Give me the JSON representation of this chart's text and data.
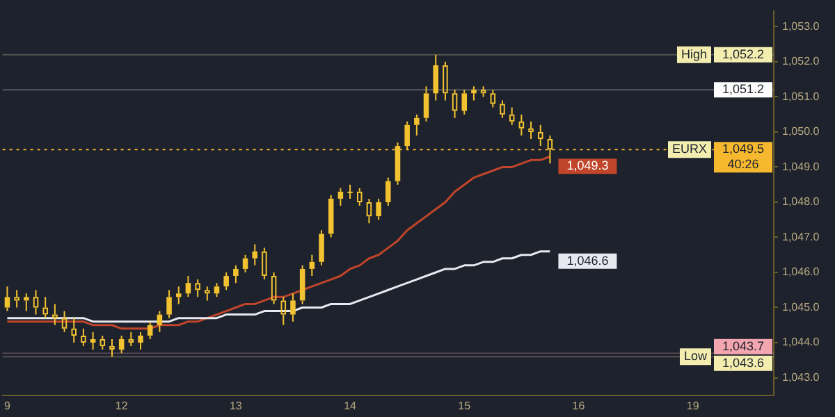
{
  "chart_data": {
    "type": "candlestick",
    "color": "#f2c230",
    "categories": [
      "9",
      null,
      null,
      null,
      null,
      null,
      null,
      null,
      null,
      null,
      null,
      null,
      "12",
      null,
      null,
      null,
      null,
      null,
      null,
      null,
      null,
      null,
      null,
      null,
      "13",
      null,
      null,
      null,
      null,
      null,
      null,
      null,
      null,
      null,
      null,
      null,
      "14",
      null,
      null,
      null,
      null,
      null,
      null,
      null,
      null,
      null,
      null,
      null,
      "15",
      null,
      null,
      null,
      null,
      null,
      null,
      null,
      null,
      null,
      null,
      null,
      "16",
      null,
      null,
      null,
      null,
      null,
      null,
      null,
      null,
      null,
      null,
      null,
      "19",
      null,
      null,
      null,
      null,
      null,
      null,
      null,
      null
    ],
    "ohlc": [
      [
        1045.0,
        1045.6,
        1044.9,
        1045.3
      ],
      [
        1045.3,
        1045.5,
        1045.0,
        1045.2
      ],
      [
        1045.2,
        1045.4,
        1044.9,
        1045.3
      ],
      [
        1045.3,
        1045.5,
        1044.8,
        1045.0
      ],
      [
        1045.0,
        1045.3,
        1044.7,
        1044.8
      ],
      [
        1044.8,
        1045.1,
        1044.5,
        1044.7
      ],
      [
        1044.7,
        1044.9,
        1044.3,
        1044.4
      ],
      [
        1044.4,
        1044.7,
        1044.0,
        1044.2
      ],
      [
        1044.2,
        1044.4,
        1043.9,
        1044.0
      ],
      [
        1044.0,
        1044.3,
        1043.8,
        1044.1
      ],
      [
        1044.1,
        1044.2,
        1043.8,
        1043.9
      ],
      [
        1043.9,
        1044.1,
        1043.6,
        1043.8
      ],
      [
        1043.8,
        1044.2,
        1043.7,
        1044.1
      ],
      [
        1044.1,
        1044.3,
        1043.9,
        1044.0
      ],
      [
        1044.0,
        1044.3,
        1043.8,
        1044.2
      ],
      [
        1044.2,
        1044.6,
        1044.1,
        1044.5
      ],
      [
        1044.5,
        1044.9,
        1044.3,
        1044.8
      ],
      [
        1044.8,
        1045.5,
        1044.7,
        1045.3
      ],
      [
        1045.3,
        1045.6,
        1045.1,
        1045.4
      ],
      [
        1045.4,
        1045.9,
        1045.3,
        1045.7
      ],
      [
        1045.7,
        1045.8,
        1045.3,
        1045.5
      ],
      [
        1045.5,
        1045.6,
        1045.2,
        1045.4
      ],
      [
        1045.4,
        1045.7,
        1045.3,
        1045.6
      ],
      [
        1045.6,
        1046.0,
        1045.5,
        1045.9
      ],
      [
        1045.9,
        1046.2,
        1045.7,
        1046.1
      ],
      [
        1046.1,
        1046.5,
        1046.0,
        1046.4
      ],
      [
        1046.4,
        1046.8,
        1046.2,
        1046.6
      ],
      [
        1046.6,
        1046.7,
        1045.8,
        1045.9
      ],
      [
        1045.9,
        1046.0,
        1045.1,
        1045.2
      ],
      [
        1045.2,
        1045.3,
        1044.5,
        1044.8
      ],
      [
        1044.8,
        1045.4,
        1044.6,
        1045.2
      ],
      [
        1045.2,
        1046.2,
        1045.1,
        1046.1
      ],
      [
        1046.1,
        1046.5,
        1045.9,
        1046.3
      ],
      [
        1046.3,
        1047.2,
        1046.2,
        1047.1
      ],
      [
        1047.1,
        1048.2,
        1047.0,
        1048.1
      ],
      [
        1048.1,
        1048.4,
        1047.9,
        1048.3
      ],
      [
        1048.3,
        1048.5,
        1048.1,
        1048.3
      ],
      [
        1048.3,
        1048.4,
        1047.9,
        1048.0
      ],
      [
        1048.0,
        1048.1,
        1047.4,
        1047.6
      ],
      [
        1047.6,
        1048.1,
        1047.5,
        1048.0
      ],
      [
        1048.0,
        1048.7,
        1047.9,
        1048.6
      ],
      [
        1048.6,
        1049.7,
        1048.5,
        1049.6
      ],
      [
        1049.6,
        1050.3,
        1049.5,
        1050.2
      ],
      [
        1050.2,
        1050.5,
        1049.9,
        1050.4
      ],
      [
        1050.4,
        1051.3,
        1050.3,
        1051.1
      ],
      [
        1051.1,
        1052.2,
        1050.9,
        1051.9
      ],
      [
        1051.9,
        1052.0,
        1050.9,
        1051.1
      ],
      [
        1051.1,
        1051.2,
        1050.4,
        1050.6
      ],
      [
        1050.6,
        1051.2,
        1050.5,
        1051.1
      ],
      [
        1051.1,
        1051.3,
        1050.9,
        1051.2
      ],
      [
        1051.2,
        1051.3,
        1051.0,
        1051.1
      ],
      [
        1051.1,
        1051.2,
        1050.7,
        1050.8
      ],
      [
        1050.8,
        1050.9,
        1050.4,
        1050.5
      ],
      [
        1050.5,
        1050.7,
        1050.2,
        1050.3
      ],
      [
        1050.3,
        1050.5,
        1049.9,
        1050.1
      ],
      [
        1050.1,
        1050.3,
        1049.8,
        1050.0
      ],
      [
        1050.0,
        1050.2,
        1049.6,
        1049.8
      ],
      [
        1049.8,
        1049.9,
        1049.1,
        1049.5
      ],
      null,
      null,
      null,
      null,
      null,
      null,
      null,
      null,
      null,
      null,
      null,
      null,
      null,
      null,
      null,
      null,
      null,
      null,
      null,
      null,
      null,
      null,
      null
    ],
    "series": [
      {
        "type": "line",
        "color": "#c0452a",
        "values": [
          1044.6,
          1044.6,
          1044.6,
          1044.6,
          1044.6,
          1044.6,
          1044.6,
          1044.6,
          1044.6,
          1044.5,
          1044.5,
          1044.5,
          1044.4,
          1044.4,
          1044.4,
          1044.4,
          1044.5,
          1044.5,
          1044.5,
          1044.6,
          1044.6,
          1044.7,
          1044.8,
          1044.9,
          1045.0,
          1045.1,
          1045.1,
          1045.2,
          1045.3,
          1045.3,
          1045.4,
          1045.5,
          1045.6,
          1045.7,
          1045.8,
          1045.9,
          1046.1,
          1046.2,
          1046.4,
          1046.5,
          1046.7,
          1046.9,
          1047.2,
          1047.4,
          1047.6,
          1047.8,
          1048.0,
          1048.3,
          1048.5,
          1048.7,
          1048.8,
          1048.9,
          1049.0,
          1049.0,
          1049.1,
          1049.2,
          1049.2,
          1049.3,
          null,
          null,
          null,
          null,
          null,
          null,
          null,
          null,
          null,
          null,
          null,
          null,
          null,
          null,
          null,
          null,
          null,
          null,
          null,
          null,
          null,
          null,
          null
        ],
        "value_labels": [
          null,
          null,
          null,
          null,
          null,
          null,
          null,
          null,
          null,
          null,
          null,
          null,
          null,
          null,
          null,
          null,
          null,
          null,
          null,
          null,
          null,
          null,
          null,
          null,
          null,
          null,
          null,
          null,
          null,
          null,
          null,
          null,
          null,
          null,
          null,
          null,
          null,
          null,
          null,
          null,
          null,
          null,
          null,
          null,
          null,
          null,
          null,
          null,
          null,
          null,
          null,
          null,
          null,
          null,
          null,
          null,
          null,
          "1,049.3",
          null,
          null,
          null,
          null,
          null,
          null,
          null,
          null,
          null,
          null,
          null,
          null,
          null,
          null,
          null,
          null,
          null,
          null,
          null,
          null,
          null,
          null,
          null
        ]
      },
      {
        "type": "line",
        "color": "#e8e8f0",
        "values": [
          1044.7,
          1044.7,
          1044.7,
          1044.7,
          1044.7,
          1044.7,
          1044.7,
          1044.7,
          1044.7,
          1044.6,
          1044.6,
          1044.6,
          1044.6,
          1044.6,
          1044.6,
          1044.6,
          1044.6,
          1044.6,
          1044.7,
          1044.7,
          1044.7,
          1044.7,
          1044.7,
          1044.8,
          1044.8,
          1044.8,
          1044.8,
          1044.9,
          1044.9,
          1044.9,
          1044.9,
          1045.0,
          1045.0,
          1045.0,
          1045.1,
          1045.1,
          1045.1,
          1045.2,
          1045.3,
          1045.4,
          1045.5,
          1045.6,
          1045.7,
          1045.8,
          1045.9,
          1046.0,
          1046.1,
          1046.1,
          1046.2,
          1046.2,
          1046.3,
          1046.3,
          1046.4,
          1046.4,
          1046.5,
          1046.5,
          1046.6,
          1046.6,
          null,
          null,
          null,
          null,
          null,
          null,
          null,
          null,
          null,
          null,
          null,
          null,
          null,
          null,
          null,
          null,
          null,
          null,
          null,
          null,
          null,
          null,
          null
        ],
        "value_labels": [
          null,
          null,
          null,
          null,
          null,
          null,
          null,
          null,
          null,
          null,
          null,
          null,
          null,
          null,
          null,
          null,
          null,
          null,
          null,
          null,
          null,
          null,
          null,
          null,
          null,
          null,
          null,
          null,
          null,
          null,
          null,
          null,
          null,
          null,
          null,
          null,
          null,
          null,
          null,
          null,
          null,
          null,
          null,
          null,
          null,
          null,
          null,
          null,
          null,
          null,
          null,
          null,
          null,
          null,
          null,
          null,
          null,
          "1,046.6",
          null,
          null,
          null,
          null,
          null,
          null,
          null,
          null,
          null,
          null,
          null,
          null,
          null,
          null,
          null,
          null,
          null,
          null,
          null,
          null,
          null,
          null,
          null
        ]
      }
    ],
    "ylim": [
      1042.5,
      1053.45
    ],
    "yticks": [
      {
        "value": 1043,
        "label": "1,043.0"
      },
      {
        "value": 1044,
        "label": "1,044.0"
      },
      {
        "value": 1045,
        "label": "1,045.0"
      },
      {
        "value": 1046,
        "label": "1,046.0"
      },
      {
        "value": 1047,
        "label": "1,047.0"
      },
      {
        "value": 1048,
        "label": "1,048.0"
      },
      {
        "value": 1049,
        "label": "1,049.0"
      },
      {
        "value": 1050,
        "label": "1,050.0"
      },
      {
        "value": 1051,
        "label": "1,051.0"
      },
      {
        "value": 1052,
        "label": "1,052.0"
      },
      {
        "value": 1053,
        "label": "1,053.0"
      }
    ],
    "ref_lines": [
      {
        "axis": "y",
        "value": 1052.2,
        "label": "1,052.2",
        "color": "#f3eeb0",
        "line_style": "solid"
      },
      {
        "axis": "y",
        "value": 1051.2,
        "label": "1,051.2",
        "color": "#ffffff",
        "line_style": "solid"
      },
      {
        "axis": "y",
        "value": 1049.5,
        "label": "1,049.5\n40:26",
        "color": "#f5b82e",
        "line_style": "dotted"
      },
      {
        "axis": "y",
        "value": 1043.7,
        "label": "1,043.7",
        "color": "#f4a6b0",
        "line_style": "solid"
      },
      {
        "axis": "y",
        "value": 1043.6,
        "label": "1,043.6",
        "color": "#f3eeb0",
        "line_style": "solid"
      }
    ],
    "annotations": [
      {
        "text": "High",
        "y": 1052.2
      },
      {
        "text": "EURX",
        "y": 1049.5
      },
      {
        "text": "Low",
        "y": 1043.6
      }
    ],
    "grid": false,
    "legend": false
  }
}
